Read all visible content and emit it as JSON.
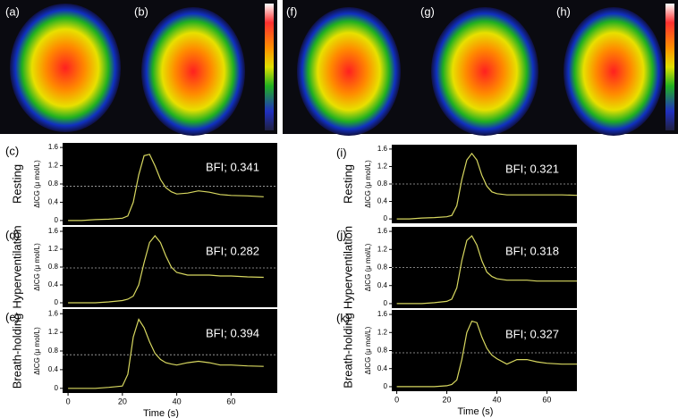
{
  "images": [
    {
      "label": "(a)"
    },
    {
      "label": "(b)"
    },
    {
      "label": "(f)"
    },
    {
      "label": "(g)"
    },
    {
      "label": "(h)"
    }
  ],
  "chart_data": [
    {
      "type": "line",
      "panel": "(c)",
      "row_label": "Resting",
      "ylabel": "ΔICG (μ mol/L)",
      "annotation": "BFI; 0.341",
      "reference_line": 0.75,
      "x": [
        0,
        5,
        10,
        15,
        20,
        22,
        24,
        26,
        28,
        30,
        32,
        34,
        36,
        38,
        40,
        44,
        48,
        52,
        56,
        60,
        66,
        72
      ],
      "series": [
        {
          "color": "#d8d860",
          "values": [
            0,
            0,
            0.02,
            0.03,
            0.05,
            0.1,
            0.4,
            1.0,
            1.42,
            1.45,
            1.2,
            0.9,
            0.72,
            0.63,
            0.58,
            0.6,
            0.65,
            0.62,
            0.57,
            0.55,
            0.54,
            0.52
          ]
        }
      ],
      "xlim": [
        -2,
        77
      ],
      "ylim": [
        -0.1,
        1.7
      ],
      "yticks": [
        0,
        0.4,
        0.8,
        1.2,
        1.6
      ]
    },
    {
      "type": "line",
      "panel": "(d)",
      "row_label": "Hyperventilation",
      "ylabel": "ΔICG (μ mol/L)",
      "annotation": "BFI; 0.282",
      "reference_line": 0.78,
      "x": [
        0,
        5,
        10,
        15,
        20,
        22,
        24,
        26,
        28,
        30,
        32,
        34,
        36,
        38,
        40,
        44,
        48,
        52,
        56,
        60,
        66,
        72
      ],
      "series": [
        {
          "color": "#d8d860",
          "values": [
            0,
            0,
            0,
            0.02,
            0.05,
            0.08,
            0.15,
            0.4,
            0.9,
            1.35,
            1.5,
            1.35,
            1.05,
            0.8,
            0.68,
            0.62,
            0.62,
            0.62,
            0.6,
            0.6,
            0.58,
            0.57
          ]
        }
      ],
      "xlim": [
        -2,
        77
      ],
      "ylim": [
        -0.1,
        1.7
      ],
      "yticks": [
        0,
        0.4,
        0.8,
        1.2,
        1.6
      ]
    },
    {
      "type": "line",
      "panel": "(e)",
      "row_label": "Breath-holding",
      "ylabel": "ΔICG (μ mol/L)",
      "annotation": "BFI; 0.394",
      "reference_line": 0.72,
      "xlabel": "Time (s)",
      "x": [
        0,
        5,
        10,
        15,
        20,
        22,
        24,
        26,
        28,
        30,
        32,
        34,
        36,
        38,
        40,
        44,
        48,
        52,
        56,
        60,
        66,
        72
      ],
      "series": [
        {
          "color": "#d8d860",
          "values": [
            0,
            0,
            0,
            0.02,
            0.05,
            0.3,
            1.1,
            1.48,
            1.3,
            1.0,
            0.75,
            0.62,
            0.55,
            0.52,
            0.5,
            0.55,
            0.58,
            0.55,
            0.5,
            0.5,
            0.48,
            0.47
          ]
        }
      ],
      "xlim": [
        -2,
        77
      ],
      "xticks": [
        0,
        20,
        40,
        60
      ],
      "ylim": [
        -0.1,
        1.7
      ],
      "yticks": [
        0,
        0.4,
        0.8,
        1.2,
        1.6
      ]
    },
    {
      "type": "line",
      "panel": "(i)",
      "row_label": "Resting",
      "ylabel": "ΔICG (μ mol/L)",
      "annotation": "BFI; 0.321",
      "reference_line": 0.8,
      "x": [
        0,
        5,
        10,
        15,
        20,
        22,
        24,
        26,
        28,
        30,
        32,
        34,
        36,
        38,
        40,
        44,
        48,
        52,
        56,
        60,
        66,
        72
      ],
      "series": [
        {
          "color": "#d8d860",
          "values": [
            0,
            0,
            0.02,
            0.03,
            0.05,
            0.08,
            0.3,
            0.9,
            1.35,
            1.5,
            1.35,
            1.0,
            0.75,
            0.62,
            0.58,
            0.55,
            0.55,
            0.55,
            0.55,
            0.55,
            0.55,
            0.54
          ]
        }
      ],
      "xlim": [
        -2,
        72
      ],
      "ylim": [
        -0.1,
        1.7
      ],
      "yticks": [
        0,
        0.4,
        0.8,
        1.2,
        1.6
      ]
    },
    {
      "type": "line",
      "panel": "(j)",
      "row_label": "Hyperventilation",
      "ylabel": "ΔICG (μ mol/L)",
      "annotation": "BFI; 0.318",
      "reference_line": 0.8,
      "x": [
        0,
        5,
        10,
        15,
        20,
        22,
        24,
        26,
        28,
        30,
        32,
        34,
        36,
        38,
        40,
        44,
        48,
        52,
        56,
        60,
        66,
        72
      ],
      "series": [
        {
          "color": "#d8d860",
          "values": [
            0,
            0,
            0,
            0.02,
            0.05,
            0.1,
            0.35,
            0.95,
            1.4,
            1.5,
            1.3,
            0.95,
            0.7,
            0.6,
            0.55,
            0.52,
            0.52,
            0.52,
            0.5,
            0.5,
            0.5,
            0.5
          ]
        }
      ],
      "xlim": [
        -2,
        72
      ],
      "ylim": [
        -0.1,
        1.7
      ],
      "yticks": [
        0,
        0.4,
        0.8,
        1.2,
        1.6
      ]
    },
    {
      "type": "line",
      "panel": "(k)",
      "row_label": "Breath-holding",
      "ylabel": "ΔICG (μ mol/L)",
      "annotation": "BFI; 0.327",
      "reference_line": 0.75,
      "xlabel": "Time (s)",
      "x": [
        0,
        5,
        10,
        15,
        20,
        22,
        24,
        26,
        28,
        30,
        32,
        34,
        36,
        38,
        40,
        44,
        48,
        52,
        56,
        60,
        66,
        72
      ],
      "series": [
        {
          "color": "#d8d860",
          "values": [
            0,
            0,
            0,
            0,
            0.02,
            0.05,
            0.15,
            0.6,
            1.2,
            1.45,
            1.42,
            1.1,
            0.85,
            0.7,
            0.62,
            0.5,
            0.6,
            0.6,
            0.55,
            0.52,
            0.5,
            0.5
          ]
        }
      ],
      "xlim": [
        -2,
        72
      ],
      "xticks": [
        0,
        20,
        40,
        60
      ],
      "ylim": [
        -0.1,
        1.7
      ],
      "yticks": [
        0,
        0.4,
        0.8,
        1.2,
        1.6
      ]
    }
  ]
}
